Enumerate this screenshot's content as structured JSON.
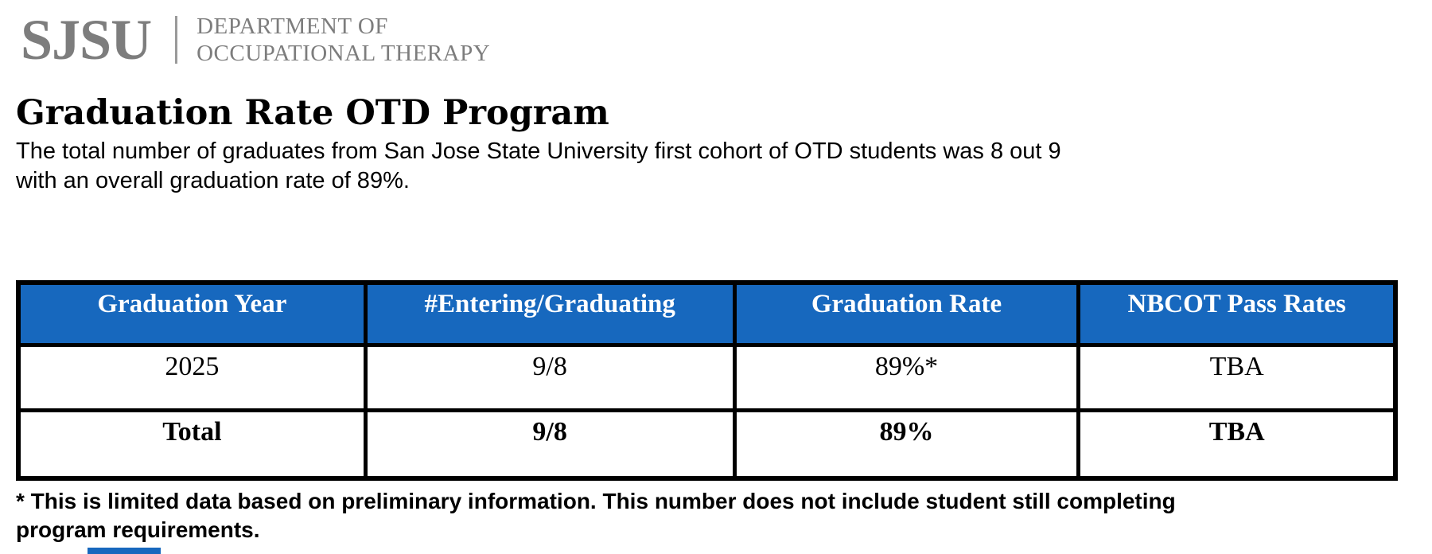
{
  "brand": {
    "logo_text": "SJSU",
    "dept_line1": "DEPARTMENT OF",
    "dept_line2": "OCCUPATIONAL THERAPY"
  },
  "page": {
    "title": "Graduation Rate OTD Program",
    "intro": {
      "line1": "The total number of graduates from San Jose State University first cohort of OTD students was 8 out 9",
      "line2": "with an overall graduation rate of 89%."
    },
    "footnote": {
      "line1": "* This is limited data based on preliminary information. This number does not include student still completing",
      "line2": "program requirements."
    }
  },
  "table": {
    "headers": [
      "Graduation Year",
      "#Entering/Graduating",
      "Graduation Rate",
      "NBCOT Pass Rates"
    ],
    "rows": [
      [
        "2025",
        "9/8",
        "89%*",
        "TBA"
      ],
      [
        "Total",
        "9/8",
        "89%",
        "TBA"
      ]
    ]
  },
  "colors": {
    "header_blue": "#1768be",
    "logo_gray": "#7d7d7d",
    "border_black": "#000000"
  }
}
